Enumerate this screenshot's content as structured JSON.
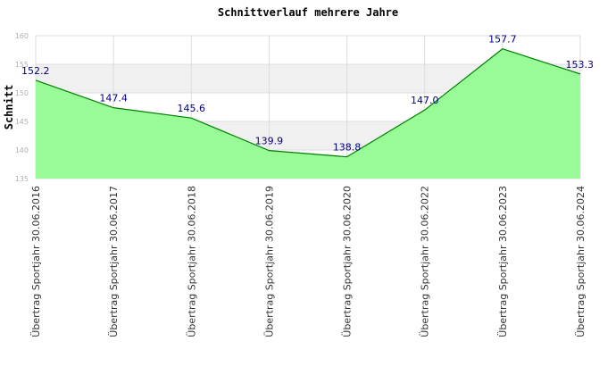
{
  "chart_data": {
    "type": "area",
    "title": "Schnittverlauf mehrere Jahre",
    "ylabel": "Schnitt",
    "xlabel": "",
    "ylim": [
      135,
      160
    ],
    "yticks": [
      "135",
      "140",
      "145",
      "150",
      "155",
      "160"
    ],
    "grid": true,
    "categories": [
      "Übertrag Sportjahr 30.06.2016",
      "Übertrag Sportjahr 30.06.2017",
      "Übertrag Sportjahr 30.06.2018",
      "Übertrag Sportjahr 30.06.2019",
      "Übertrag Sportjahr 30.06.2020",
      "Übertrag Sportjahr 30.06.2022",
      "Übertrag Sportjahr 30.06.2023",
      "Übertrag Sportjahr 30.06.2024"
    ],
    "values": [
      152.2,
      147.4,
      145.6,
      139.9,
      138.8,
      147.0,
      157.7,
      153.3
    ],
    "value_labels": [
      "152.2",
      "147.4",
      "145.6",
      "139.9",
      "138.8",
      "147.0",
      "157.7",
      "153.3"
    ],
    "colors": {
      "fill": "#98fb98",
      "line": "#008000",
      "label": "#000080",
      "band_light": "#ffffff",
      "band_dark": "#f0f0f0",
      "grid": "#dcdcdc"
    }
  }
}
